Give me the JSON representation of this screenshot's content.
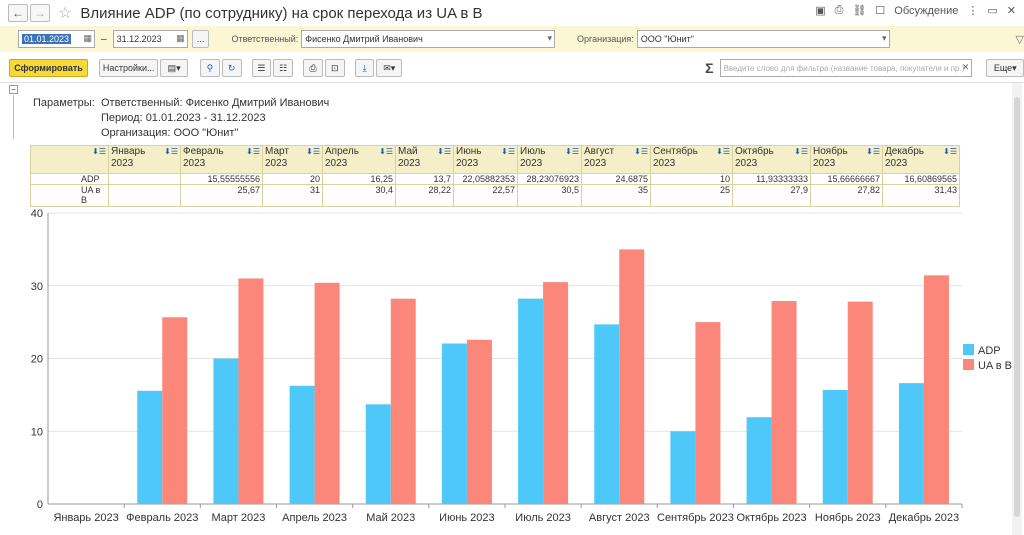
{
  "window": {
    "title": "Влияние ADP (по сотруднику) на срок перехода из UA в B",
    "discussion_label": "Обсуждение"
  },
  "filters": {
    "date_from": "01.01.2023",
    "date_sep": "–",
    "date_to": "31.12.2023",
    "more": "...",
    "responsible_label": "Ответственный:",
    "responsible_value": "Фисенко Дмитрий Иванович",
    "org_label": "Организация:",
    "org_value": "ООО \"Юнит\""
  },
  "toolbar": {
    "generate_label": "Сформировать",
    "settings_label": "Настройки...",
    "sigma": "Σ",
    "filter_placeholder": "Введите слово для фильтра (название товара, покупателя и пр.)",
    "more_label": "Еще"
  },
  "params": {
    "heading": "Параметры:",
    "responsible": "Ответственный: Фисенко Дмитрий Иванович",
    "period": "Период: 01.01.2023 - 31.12.2023",
    "organization": "Организация: ООО \"Юнит\""
  },
  "table": {
    "months": [
      {
        "m": "Январь",
        "y": "2023",
        "adp": "",
        "ua": ""
      },
      {
        "m": "Февраль",
        "y": "2023",
        "adp": "15,55555556",
        "ua": "25,67"
      },
      {
        "m": "Март",
        "y": "2023",
        "adp": "20",
        "ua": "31"
      },
      {
        "m": "Апрель",
        "y": "2023",
        "adp": "16,25",
        "ua": "30,4"
      },
      {
        "m": "Май",
        "y": "2023",
        "adp": "13,7",
        "ua": "28,22"
      },
      {
        "m": "Июнь",
        "y": "2023",
        "adp": "22,05882353",
        "ua": "22,57"
      },
      {
        "m": "Июль",
        "y": "2023",
        "adp": "28,23076923",
        "ua": "30,5"
      },
      {
        "m": "Август",
        "y": "2023",
        "adp": "24,6875",
        "ua": "35"
      },
      {
        "m": "Сентябрь",
        "y": "2023",
        "adp": "10",
        "ua": "25"
      },
      {
        "m": "Октябрь",
        "y": "2023",
        "adp": "11,93333333",
        "ua": "27,9"
      },
      {
        "m": "Ноябрь",
        "y": "2023",
        "adp": "15,66666667",
        "ua": "27,82"
      },
      {
        "m": "Декабрь",
        "y": "2023",
        "adp": "16,60869565",
        "ua": "31,43"
      }
    ],
    "row_adp": "ADP",
    "row_ua_1": "UA в",
    "row_ua_2": "B"
  },
  "chart_data": {
    "type": "bar",
    "categories": [
      "Январь 2023",
      "Февраль 2023",
      "Март 2023",
      "Апрель 2023",
      "Май 2023",
      "Июнь 2023",
      "Июль 2023",
      "Август 2023",
      "Сентябрь 2023",
      "Октябрь 2023",
      "Ноябрь 2023",
      "Декабрь 2023"
    ],
    "series": [
      {
        "name": "ADP",
        "color": "#4ec8f8",
        "values": [
          0,
          15.56,
          20,
          16.25,
          13.7,
          22.06,
          28.23,
          24.69,
          10,
          11.93,
          15.67,
          16.61
        ]
      },
      {
        "name": "UA в B",
        "color": "#fa877a",
        "values": [
          0,
          25.67,
          31,
          30.4,
          28.22,
          22.57,
          30.5,
          35,
          25,
          27.9,
          27.82,
          31.43
        ]
      }
    ],
    "yticks": [
      0,
      10,
      20,
      30,
      40
    ],
    "ylim": [
      0,
      40
    ],
    "grid": true,
    "legend": "right"
  }
}
